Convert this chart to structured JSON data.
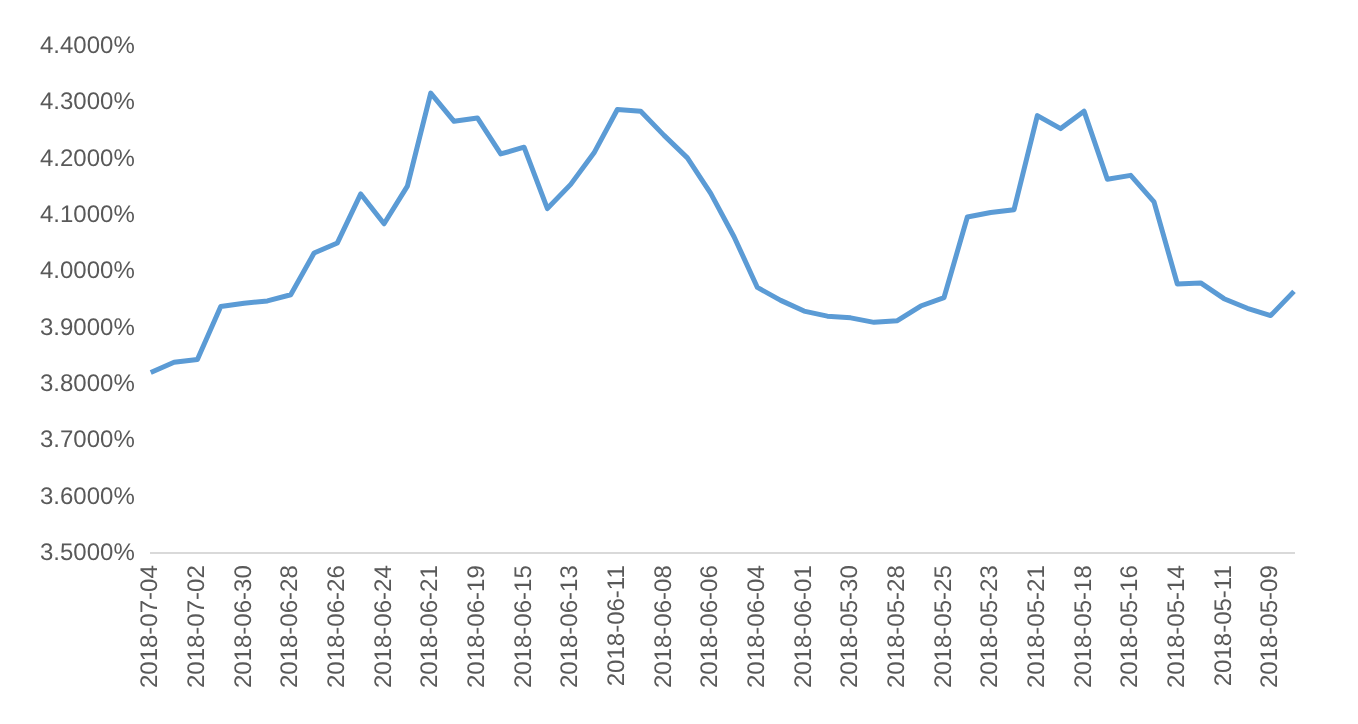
{
  "chart_data": {
    "type": "line",
    "categories": [
      "2018-07-04",
      null,
      "2018-07-02",
      null,
      "2018-06-30",
      null,
      "2018-06-28",
      null,
      "2018-06-26",
      null,
      "2018-06-24",
      null,
      "2018-06-21",
      null,
      "2018-06-19",
      null,
      "2018-06-15",
      null,
      "2018-06-13",
      null,
      "2018-06-11",
      null,
      "2018-06-08",
      null,
      "2018-06-06",
      null,
      "2018-06-04",
      null,
      "2018-06-01",
      null,
      "2018-05-30",
      null,
      "2018-05-28",
      null,
      "2018-05-25",
      null,
      "2018-05-23",
      null,
      "2018-05-21",
      null,
      "2018-05-18",
      null,
      "2018-05-16",
      null,
      "2018-05-14",
      null,
      "2018-05-11",
      null,
      "2018-05-09",
      null
    ],
    "series": [
      {
        "color": "#5b9bd5",
        "values": [
          3.821,
          3.839,
          3.844,
          3.938,
          3.944,
          3.948,
          3.959,
          4.033,
          4.051,
          4.138,
          4.085,
          4.152,
          4.317,
          4.267,
          4.273,
          4.209,
          4.221,
          4.112,
          4.155,
          4.211,
          4.288,
          4.285,
          4.242,
          4.202,
          4.139,
          4.062,
          3.972,
          3.949,
          3.93,
          3.921,
          3.918,
          3.91,
          3.913,
          3.939,
          3.954,
          4.097,
          4.105,
          4.11,
          4.277,
          4.254,
          4.285,
          4.164,
          4.171,
          4.124,
          3.978,
          3.98,
          3.952,
          3.935,
          3.922,
          3.965
        ]
      }
    ],
    "ylim": [
      3.5,
      4.4
    ],
    "yticks": [
      {
        "value": 3.5,
        "label": "3.5000%"
      },
      {
        "value": 3.6,
        "label": "3.6000%"
      },
      {
        "value": 3.7,
        "label": "3.7000%"
      },
      {
        "value": 3.8,
        "label": "3.8000%"
      },
      {
        "value": 3.9,
        "label": "3.9000%"
      },
      {
        "value": 4.0,
        "label": "4.0000%"
      },
      {
        "value": 4.1,
        "label": "4.1000%"
      },
      {
        "value": 4.2,
        "label": "4.2000%"
      },
      {
        "value": 4.3,
        "label": "4.3000%"
      },
      {
        "value": 4.4,
        "label": "4.4000%"
      }
    ],
    "grid": false,
    "legend": false,
    "marker": "none",
    "line_style": "solid"
  }
}
